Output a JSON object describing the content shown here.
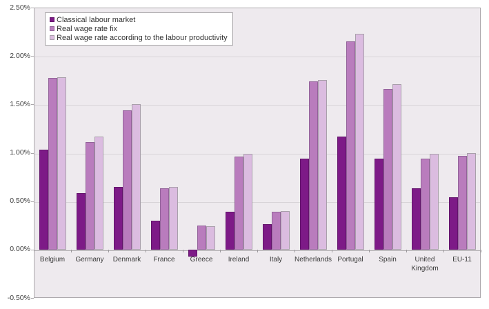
{
  "colors": {
    "page_bg": "#FFFFFF",
    "plot_bg": "#EEEAEE",
    "grid": "#D8D4D8",
    "zero_line": "#ACA9AC",
    "plot_border": "#ABA7AB",
    "axis_text": "#3D3D3D",
    "series_fill": [
      "#7D1A87",
      "#B97CBD",
      "#DBBCE0"
    ],
    "series_border": [
      "#63146B",
      "#926299",
      "#A89FAA"
    ]
  },
  "chart_data": {
    "type": "bar",
    "title": "",
    "xlabel": "",
    "ylabel": "",
    "categories": [
      "Belgium",
      "Germany",
      "Denmark",
      "France",
      "Greece",
      "Ireland",
      "Italy",
      "Netherlands",
      "Portugal",
      "Spain",
      "United Kingdom",
      "EU-11"
    ],
    "series": [
      {
        "name": "Classical labour market",
        "values": [
          1.03,
          0.58,
          0.65,
          0.3,
          -0.07,
          0.39,
          0.26,
          0.94,
          1.17,
          0.94,
          0.63,
          0.54
        ]
      },
      {
        "name": "Real wage rate fix",
        "values": [
          1.77,
          1.11,
          1.44,
          0.63,
          0.25,
          0.96,
          0.39,
          1.74,
          2.15,
          1.66,
          0.94,
          0.97
        ]
      },
      {
        "name": "Real wage rate according to the labour productivity",
        "values": [
          1.78,
          1.17,
          1.5,
          0.65,
          0.24,
          0.99,
          0.4,
          1.75,
          2.23,
          1.71,
          0.99,
          1.0
        ]
      }
    ],
    "ylim": [
      -0.5,
      2.5
    ],
    "ytick_step": 0.5,
    "ytick_labels": [
      "2.50%",
      "2.00%",
      "1.50%",
      "1.00%",
      "0.50%",
      "0.00%",
      "-0.50%"
    ],
    "grid": true,
    "legend_position": "top-left"
  }
}
